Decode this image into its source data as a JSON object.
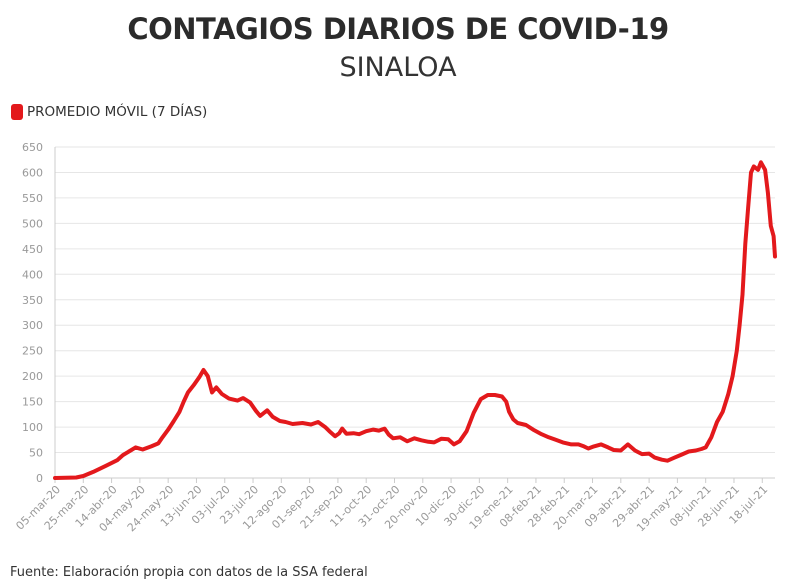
{
  "chart_data": {
    "type": "line",
    "title": "CONTAGIOS DIARIOS DE COVID-19",
    "subtitle": "SINALOA",
    "legend": {
      "position": "top-left",
      "entries": [
        "PROMEDIO MÓVIL (7 DÍAS)"
      ]
    },
    "series": [
      {
        "name": "PROMEDIO MÓVIL (7 DÍAS)",
        "color": "#e3191c",
        "points": [
          [
            "2020-03-05",
            0
          ],
          [
            "2020-03-20",
            1
          ],
          [
            "2020-03-25",
            4
          ],
          [
            "2020-04-01",
            12
          ],
          [
            "2020-04-10",
            24
          ],
          [
            "2020-04-18",
            35
          ],
          [
            "2020-04-22",
            45
          ],
          [
            "2020-04-28",
            55
          ],
          [
            "2020-05-01",
            60
          ],
          [
            "2020-05-06",
            56
          ],
          [
            "2020-05-12",
            62
          ],
          [
            "2020-05-17",
            68
          ],
          [
            "2020-05-20",
            80
          ],
          [
            "2020-05-24",
            95
          ],
          [
            "2020-05-28",
            112
          ],
          [
            "2020-06-01",
            130
          ],
          [
            "2020-06-04",
            150
          ],
          [
            "2020-06-07",
            168
          ],
          [
            "2020-06-11",
            182
          ],
          [
            "2020-06-15",
            198
          ],
          [
            "2020-06-18",
            212
          ],
          [
            "2020-06-21",
            200
          ],
          [
            "2020-06-24",
            168
          ],
          [
            "2020-06-27",
            178
          ],
          [
            "2020-07-01",
            165
          ],
          [
            "2020-07-06",
            156
          ],
          [
            "2020-07-12",
            152
          ],
          [
            "2020-07-16",
            157
          ],
          [
            "2020-07-21",
            148
          ],
          [
            "2020-07-25",
            132
          ],
          [
            "2020-07-28",
            122
          ],
          [
            "2020-08-02",
            133
          ],
          [
            "2020-08-06",
            120
          ],
          [
            "2020-08-11",
            112
          ],
          [
            "2020-08-15",
            110
          ],
          [
            "2020-08-20",
            106
          ],
          [
            "2020-08-27",
            108
          ],
          [
            "2020-09-02",
            105
          ],
          [
            "2020-09-07",
            110
          ],
          [
            "2020-09-12",
            100
          ],
          [
            "2020-09-15",
            92
          ],
          [
            "2020-09-19",
            82
          ],
          [
            "2020-09-22",
            88
          ],
          [
            "2020-09-24",
            97
          ],
          [
            "2020-09-27",
            87
          ],
          [
            "2020-10-02",
            88
          ],
          [
            "2020-10-06",
            86
          ],
          [
            "2020-10-11",
            92
          ],
          [
            "2020-10-16",
            95
          ],
          [
            "2020-10-20",
            93
          ],
          [
            "2020-10-24",
            97
          ],
          [
            "2020-10-27",
            85
          ],
          [
            "2020-10-30",
            78
          ],
          [
            "2020-11-04",
            80
          ],
          [
            "2020-11-09",
            72
          ],
          [
            "2020-11-14",
            78
          ],
          [
            "2020-11-19",
            74
          ],
          [
            "2020-11-24",
            71
          ],
          [
            "2020-11-28",
            70
          ],
          [
            "2020-12-03",
            77
          ],
          [
            "2020-12-08",
            76
          ],
          [
            "2020-12-12",
            66
          ],
          [
            "2020-12-16",
            72
          ],
          [
            "2020-12-21",
            92
          ],
          [
            "2020-12-26",
            128
          ],
          [
            "2020-12-31",
            155
          ],
          [
            "2021-01-05",
            163
          ],
          [
            "2021-01-10",
            163
          ],
          [
            "2021-01-15",
            160
          ],
          [
            "2021-01-18",
            150
          ],
          [
            "2021-01-20",
            130
          ],
          [
            "2021-01-23",
            115
          ],
          [
            "2021-01-26",
            108
          ],
          [
            "2021-02-01",
            104
          ],
          [
            "2021-02-06",
            95
          ],
          [
            "2021-02-12",
            86
          ],
          [
            "2021-02-17",
            80
          ],
          [
            "2021-02-22",
            75
          ],
          [
            "2021-02-27",
            70
          ],
          [
            "2021-03-05",
            66
          ],
          [
            "2021-03-10",
            66
          ],
          [
            "2021-03-14",
            62
          ],
          [
            "2021-03-17",
            58
          ],
          [
            "2021-03-21",
            62
          ],
          [
            "2021-03-26",
            66
          ],
          [
            "2021-03-31",
            60
          ],
          [
            "2021-04-04",
            55
          ],
          [
            "2021-04-09",
            54
          ],
          [
            "2021-04-14",
            66
          ],
          [
            "2021-04-19",
            54
          ],
          [
            "2021-04-24",
            47
          ],
          [
            "2021-04-29",
            48
          ],
          [
            "2021-05-03",
            40
          ],
          [
            "2021-05-08",
            36
          ],
          [
            "2021-05-12",
            34
          ],
          [
            "2021-05-17",
            40
          ],
          [
            "2021-05-22",
            46
          ],
          [
            "2021-05-27",
            52
          ],
          [
            "2021-06-01",
            54
          ],
          [
            "2021-06-05",
            57
          ],
          [
            "2021-06-08",
            60
          ],
          [
            "2021-06-12",
            80
          ],
          [
            "2021-06-16",
            110
          ],
          [
            "2021-06-20",
            130
          ],
          [
            "2021-06-24",
            165
          ],
          [
            "2021-06-27",
            200
          ],
          [
            "2021-06-30",
            250
          ],
          [
            "2021-07-02",
            300
          ],
          [
            "2021-07-04",
            360
          ],
          [
            "2021-07-06",
            460
          ],
          [
            "2021-07-08",
            530
          ],
          [
            "2021-07-10",
            600
          ],
          [
            "2021-07-12",
            612
          ],
          [
            "2021-07-15",
            605
          ],
          [
            "2021-07-17",
            620
          ],
          [
            "2021-07-20",
            605
          ],
          [
            "2021-07-22",
            560
          ],
          [
            "2021-07-24",
            495
          ],
          [
            "2021-07-26",
            475
          ],
          [
            "2021-07-27",
            435
          ]
        ]
      }
    ],
    "y_ticks": [
      0,
      50,
      100,
      150,
      200,
      250,
      300,
      350,
      400,
      450,
      500,
      550,
      600,
      650
    ],
    "ylim": [
      0,
      650
    ],
    "x_range": [
      "2020-03-05",
      "2021-07-27"
    ],
    "x_ticks": [
      "05-mar-20",
      "25-mar-20",
      "14-abr-20",
      "04-may-20",
      "24-may-20",
      "13-jun-20",
      "03-jul-20",
      "23-jul-20",
      "12-ago-20",
      "01-sep-20",
      "21-sep-20",
      "11-oct-20",
      "31-oct-20",
      "20-nov-20",
      "10-dic-20",
      "30-dic-20",
      "19-ene-21",
      "08-feb-21",
      "28-feb-21",
      "20-mar-21",
      "09-abr-21",
      "29-abr-21",
      "19-may-21",
      "08-jun-21",
      "28-jun-21",
      "18-jul-21"
    ],
    "grid": true
  },
  "source": "Fuente: Elaboración propia con datos de la SSA federal"
}
